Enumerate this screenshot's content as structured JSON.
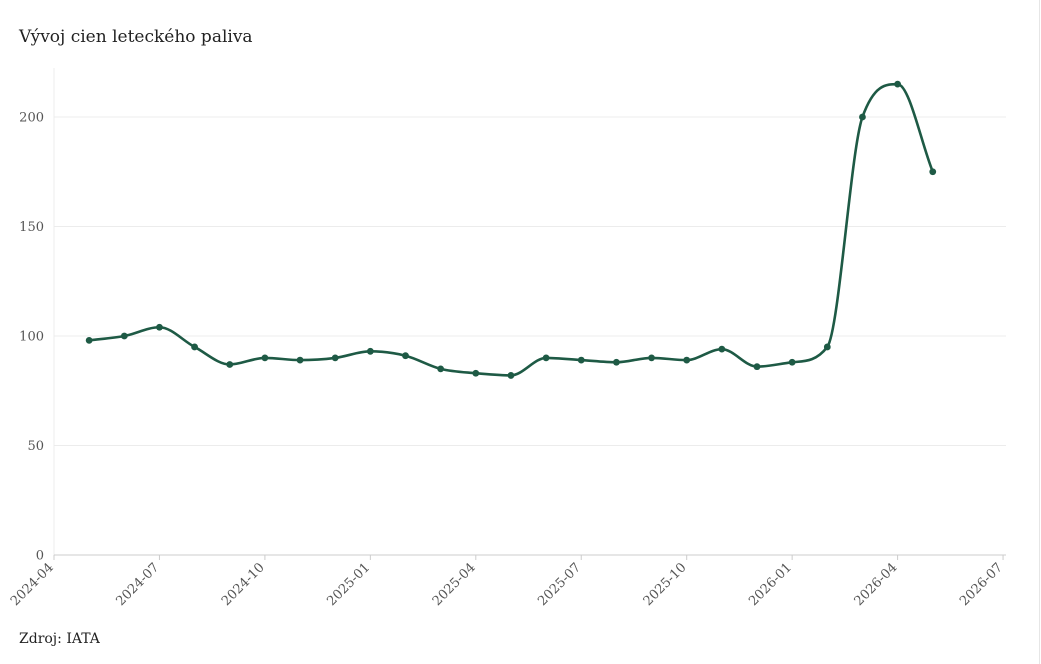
{
  "title": "Vývoj cien leteckého paliva",
  "source": "Zdroj: IATA",
  "colors": {
    "line": "#1e5a45",
    "grid": "#ececec",
    "axis": "#cccccc"
  },
  "chart_data": {
    "type": "line",
    "title": "Vývoj cien leteckého paliva",
    "xlabel": "",
    "ylabel": "",
    "x_tick_labels": [
      "2024-04",
      "2024-07",
      "2024-10",
      "2025-01",
      "2025-04",
      "2025-07",
      "2025-10",
      "2026-01",
      "2026-04",
      "2026-07"
    ],
    "y_ticks": [
      0,
      50,
      100,
      150,
      200
    ],
    "ylim": [
      0,
      225
    ],
    "grid": true,
    "legend": "none",
    "series": [
      {
        "x": [
          "2024-05",
          "2024-06",
          "2024-07",
          "2024-08",
          "2024-09",
          "2024-10",
          "2024-11",
          "2024-12",
          "2025-01",
          "2025-02",
          "2025-03",
          "2025-04",
          "2025-05",
          "2025-06",
          "2025-07",
          "2025-08",
          "2025-09",
          "2025-10",
          "2025-11",
          "2025-12",
          "2026-01",
          "2026-02",
          "2026-03",
          "2026-04",
          "2026-05"
        ],
        "y": [
          98,
          100,
          104,
          95,
          87,
          90,
          89,
          90,
          93,
          91,
          85,
          83,
          82,
          90,
          89,
          88,
          90,
          89,
          94,
          86,
          88,
          95,
          200,
          215,
          175
        ]
      }
    ]
  }
}
